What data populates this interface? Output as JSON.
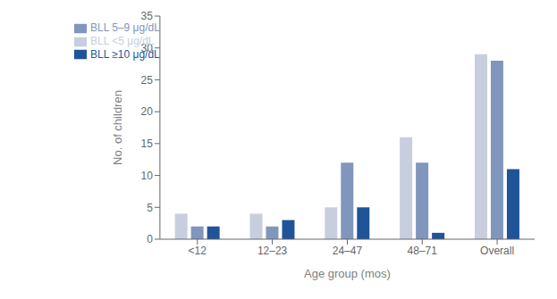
{
  "chart_data": {
    "type": "bar",
    "categories": [
      "<12",
      "12–23",
      "24–47",
      "48–71",
      "Overall"
    ],
    "series": [
      {
        "name": "BLL <5 μg/dL",
        "color": "#c8cedd",
        "values": [
          4,
          4,
          5,
          16,
          29
        ]
      },
      {
        "name": "BLL 5–9 μg/dL",
        "color": "#8096bc",
        "values": [
          2,
          2,
          12,
          12,
          28
        ]
      },
      {
        "name": "BLL ≥10 μg/dL",
        "color": "#1f5499",
        "values": [
          2,
          3,
          5,
          1,
          11
        ]
      }
    ],
    "xlabel": "Age group (mos)",
    "ylabel": "No. of children",
    "ylim": [
      0,
      35
    ],
    "yticks": [
      0,
      5,
      10,
      15,
      20,
      25,
      30,
      35
    ],
    "grid": false,
    "legend": "upper left"
  }
}
